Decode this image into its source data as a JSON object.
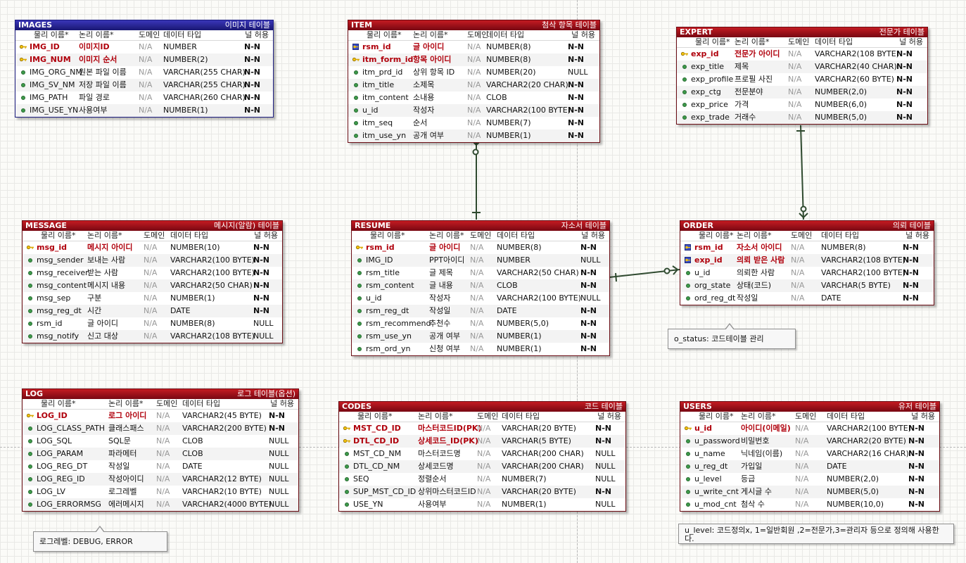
{
  "colors": {
    "entity_header": "#a3101a",
    "entity_header_images": "#26248f",
    "key_text": "#b0000c",
    "relationship_line": "#2f4a2f"
  },
  "column_headers": {
    "physical": "물리 이름*",
    "logical": "논리 이름*",
    "domain": "도메인",
    "datatype": "데이터 타입",
    "nullable": "널 허용"
  },
  "entities": {
    "images": {
      "name": "IMAGES",
      "label": "이미지 테이블",
      "rows": [
        {
          "key": "pk",
          "phys": "IMG_ID",
          "logi": "이미지ID",
          "dom": "N/A",
          "type": "NUMBER",
          "nul": "N-N"
        },
        {
          "key": "pk",
          "phys": "IMG_NUM",
          "logi": "이미지 순서",
          "dom": "N/A",
          "type": "NUMBER(2)",
          "nul": "N-N"
        },
        {
          "key": "",
          "phys": "IMG_ORG_NM",
          "logi": "원본 파일 이름",
          "dom": "N/A",
          "type": "VARCHAR(255 CHAR)",
          "nul": "N-N"
        },
        {
          "key": "",
          "phys": "IMG_SV_NM",
          "logi": "저장 파일 이름",
          "dom": "N/A",
          "type": "VARCHAR(255 CHAR)",
          "nul": "N-N"
        },
        {
          "key": "",
          "phys": "IMG_PATH",
          "logi": "파일 경로",
          "dom": "N/A",
          "type": "VARCHAR(260 CHAR)",
          "nul": "N-N"
        },
        {
          "key": "",
          "phys": "IMG_USE_YN",
          "logi": "사용여부",
          "dom": "N/A",
          "type": "NUMBER(1)",
          "nul": "N-N"
        }
      ]
    },
    "item": {
      "name": "ITEM",
      "label": "첨삭 항목 테이블",
      "rows": [
        {
          "key": "pkfk",
          "phys": "rsm_id",
          "logi": "글 아이디",
          "dom": "N/A",
          "type": "NUMBER(8)",
          "nul": "N-N"
        },
        {
          "key": "pk",
          "phys": "itm_form_id",
          "logi": "항목 아이디",
          "dom": "N/A",
          "type": "NUMBER(8)",
          "nul": "N-N"
        },
        {
          "key": "",
          "phys": "itm_prd_id",
          "logi": "상위 항목 ID",
          "dom": "N/A",
          "type": "NUMBER(20)",
          "nul": "NULL"
        },
        {
          "key": "",
          "phys": "itm_title",
          "logi": "소제목",
          "dom": "N/A",
          "type": "VARCHAR2(20 CHAR)",
          "nul": "N-N"
        },
        {
          "key": "",
          "phys": "itm_content",
          "logi": "소내용",
          "dom": "N/A",
          "type": "CLOB",
          "nul": "N-N"
        },
        {
          "key": "",
          "phys": "u_id",
          "logi": "작성자",
          "dom": "N/A",
          "type": "VARCHAR2(100 BYTE)",
          "nul": "N-N"
        },
        {
          "key": "",
          "phys": "itm_seq",
          "logi": "순서",
          "dom": "N/A",
          "type": "NUMBER(7)",
          "nul": "N-N"
        },
        {
          "key": "",
          "phys": "itm_use_yn",
          "logi": "공개 여부",
          "dom": "N/A",
          "type": "NUMBER(1)",
          "nul": "N-N"
        }
      ]
    },
    "expert": {
      "name": "EXPERT",
      "label": "전문가 테이블",
      "rows": [
        {
          "key": "pk",
          "phys": "exp_id",
          "logi": "전문가 아이디",
          "dom": "N/A",
          "type": "VARCHAR2(108 BYTE)",
          "nul": "N-N"
        },
        {
          "key": "",
          "phys": "exp_title",
          "logi": "제목",
          "dom": "N/A",
          "type": "VARCHAR2(40 CHAR)",
          "nul": "N-N"
        },
        {
          "key": "",
          "phys": "exp_profile",
          "logi": "프로필 사진",
          "dom": "N/A",
          "type": "VARCHAR2(60 BYTE)",
          "nul": "N-N"
        },
        {
          "key": "",
          "phys": "exp_ctg",
          "logi": "전문분야",
          "dom": "N/A",
          "type": "NUMBER(2,0)",
          "nul": "N-N"
        },
        {
          "key": "",
          "phys": "exp_price",
          "logi": "가격",
          "dom": "N/A",
          "type": "NUMBER(6,0)",
          "nul": "N-N"
        },
        {
          "key": "",
          "phys": "exp_trade",
          "logi": "거래수",
          "dom": "N/A",
          "type": "NUMBER(5,0)",
          "nul": "N-N"
        }
      ]
    },
    "message": {
      "name": "MESSAGE",
      "label": "메시지(알람) 테이블",
      "rows": [
        {
          "key": "pk",
          "phys": "msg_id",
          "logi": "메시지 아이디",
          "dom": "N/A",
          "type": "NUMBER(10)",
          "nul": "N-N"
        },
        {
          "key": "",
          "phys": "msg_sender",
          "logi": "보내는 사람",
          "dom": "N/A",
          "type": "VARCHAR2(100 BYTE)",
          "nul": "N-N"
        },
        {
          "key": "",
          "phys": "msg_receiver",
          "logi": "받는 사람",
          "dom": "N/A",
          "type": "VARCHAR2(100 BYTE)",
          "nul": "N-N"
        },
        {
          "key": "",
          "phys": "msg_content",
          "logi": "메시지 내용",
          "dom": "N/A",
          "type": "VARCHAR2(50 CHAR)",
          "nul": "N-N"
        },
        {
          "key": "",
          "phys": "msg_sep",
          "logi": "구분",
          "dom": "N/A",
          "type": "NUMBER(1)",
          "nul": "N-N"
        },
        {
          "key": "",
          "phys": "msg_reg_dt",
          "logi": "시간",
          "dom": "N/A",
          "type": "DATE",
          "nul": "N-N"
        },
        {
          "key": "",
          "phys": "rsm_id",
          "logi": "글 아이디",
          "dom": "N/A",
          "type": "NUMBER(8)",
          "nul": "NULL"
        },
        {
          "key": "",
          "phys": "msg_notify",
          "logi": "신고 대상",
          "dom": "N/A",
          "type": "VARCHAR2(108 BYTE)",
          "nul": "NULL"
        }
      ]
    },
    "resume": {
      "name": "RESUME",
      "label": "자소서 테이블",
      "rows": [
        {
          "key": "pk",
          "phys": "rsm_id",
          "logi": "글 아이디",
          "dom": "N/A",
          "type": "NUMBER(8)",
          "nul": "N-N"
        },
        {
          "key": "",
          "phys": "IMG_ID",
          "logi": "PPT아이디",
          "dom": "N/A",
          "type": "NUMBER",
          "nul": "NULL"
        },
        {
          "key": "",
          "phys": "rsm_title",
          "logi": "글 제목",
          "dom": "N/A",
          "type": "VARCHAR2(50 CHAR)",
          "nul": "N-N"
        },
        {
          "key": "",
          "phys": "rsm_content",
          "logi": "글 내용",
          "dom": "N/A",
          "type": "CLOB",
          "nul": "N-N"
        },
        {
          "key": "",
          "phys": "u_id",
          "logi": "작성자",
          "dom": "N/A",
          "type": "VARCHAR2(100 BYTE)",
          "nul": "NULL"
        },
        {
          "key": "",
          "phys": "rsm_reg_dt",
          "logi": "작성일",
          "dom": "N/A",
          "type": "DATE",
          "nul": "N-N"
        },
        {
          "key": "",
          "phys": "rsm_recommend",
          "logi": "추천수",
          "dom": "N/A",
          "type": "NUMBER(5,0)",
          "nul": "N-N"
        },
        {
          "key": "",
          "phys": "rsm_use_yn",
          "logi": "공개 여부",
          "dom": "N/A",
          "type": "NUMBER(1)",
          "nul": "N-N"
        },
        {
          "key": "",
          "phys": "rsm_ord_yn",
          "logi": "신청 여부",
          "dom": "N/A",
          "type": "NUMBER(1)",
          "nul": "N-N"
        }
      ]
    },
    "order": {
      "name": "ORDER",
      "label": "의뢰 테이블",
      "rows": [
        {
          "key": "pkfk",
          "phys": "rsm_id",
          "logi": "자소서 아이디",
          "dom": "N/A",
          "type": "NUMBER(8)",
          "nul": "N-N"
        },
        {
          "key": "pkfk",
          "phys": "exp_id",
          "logi": "의뢰 받은 사람",
          "dom": "N/A",
          "type": "VARCHAR2(108 BYTE)",
          "nul": "N-N"
        },
        {
          "key": "",
          "phys": "u_id",
          "logi": "의뢰한 사람",
          "dom": "N/A",
          "type": "VARCHAR2(100 BYTE)",
          "nul": "N-N"
        },
        {
          "key": "",
          "phys": "org_state",
          "logi": "상태(코드)",
          "dom": "N/A",
          "type": "VARCHAR(5 BYTE)",
          "nul": "N-N"
        },
        {
          "key": "",
          "phys": "ord_reg_dt",
          "logi": "작성일",
          "dom": "N/A",
          "type": "DATE",
          "nul": "N-N"
        }
      ]
    },
    "log": {
      "name": "LOG",
      "label": "로그 테이블(옵션)",
      "rows": [
        {
          "key": "pk",
          "phys": "LOG_ID",
          "logi": "로그 아이디",
          "dom": "N/A",
          "type": "VARCHAR2(45 BYTE)",
          "nul": "N-N"
        },
        {
          "key": "",
          "phys": "LOG_CLASS_PATH",
          "logi": "클래스패스",
          "dom": "N/A",
          "type": "VARCHAR2(200 BYTE)",
          "nul": "N-N"
        },
        {
          "key": "",
          "phys": "LOG_SQL",
          "logi": "SQL문",
          "dom": "N/A",
          "type": "CLOB",
          "nul": "NULL"
        },
        {
          "key": "",
          "phys": "LOG_PARAM",
          "logi": "파라메터",
          "dom": "N/A",
          "type": "CLOB",
          "nul": "NULL"
        },
        {
          "key": "",
          "phys": "LOG_REG_DT",
          "logi": "작성일",
          "dom": "N/A",
          "type": "DATE",
          "nul": "NULL"
        },
        {
          "key": "",
          "phys": "LOG_REG_ID",
          "logi": "작성아이디",
          "dom": "N/A",
          "type": "VARCHAR2(12 BYTE)",
          "nul": "NULL"
        },
        {
          "key": "",
          "phys": "LOG_LV",
          "logi": "로그레벨",
          "dom": "N/A",
          "type": "VARCHAR2(10 BYTE)",
          "nul": "NULL"
        },
        {
          "key": "",
          "phys": "LOG_ERRORMSG",
          "logi": "에러메시지",
          "dom": "N/A",
          "type": "VARCHAR2(4000 BYTE)",
          "nul": "NULL"
        }
      ]
    },
    "codes": {
      "name": "CODES",
      "label": "코드 테이블",
      "rows": [
        {
          "key": "pk",
          "phys": "MST_CD_ID",
          "logi": "마스터코드ID(PK)",
          "dom": "N/A",
          "type": "VARCHAR(20 BYTE)",
          "nul": "N-N"
        },
        {
          "key": "pk",
          "phys": "DTL_CD_ID",
          "logi": "상세코드_ID(PK)",
          "dom": "N/A",
          "type": "VARCHAR(5 BYTE)",
          "nul": "N-N"
        },
        {
          "key": "",
          "phys": "MST_CD_NM",
          "logi": "마스터코드명",
          "dom": "N/A",
          "type": "VARCHAR(200 CHAR)",
          "nul": "NULL"
        },
        {
          "key": "",
          "phys": "DTL_CD_NM",
          "logi": "상세코드명",
          "dom": "N/A",
          "type": "VARCHAR(200 CHAR)",
          "nul": "NULL"
        },
        {
          "key": "",
          "phys": "SEQ",
          "logi": "정렬순서",
          "dom": "N/A",
          "type": "NUMBER(7)",
          "nul": "NULL"
        },
        {
          "key": "",
          "phys": "SUP_MST_CD_ID",
          "logi": "상위마스터코드ID",
          "dom": "N/A",
          "type": "VARCHAR(20 BYTE)",
          "nul": "N-N"
        },
        {
          "key": "",
          "phys": "USE_YN",
          "logi": "사용여부",
          "dom": "N/A",
          "type": "NUMBER(1)",
          "nul": "NULL"
        }
      ]
    },
    "users": {
      "name": "USERS",
      "label": "유저 테이블",
      "rows": [
        {
          "key": "pk",
          "phys": "u_id",
          "logi": "아이디(이메일)",
          "dom": "N/A",
          "type": "VARCHAR2(100 BYTE)",
          "nul": "N-N"
        },
        {
          "key": "",
          "phys": "u_password",
          "logi": "비밀번호",
          "dom": "N/A",
          "type": "VARCHAR2(20 BYTE)",
          "nul": "N-N"
        },
        {
          "key": "",
          "phys": "u_name",
          "logi": "닉네임(이름)",
          "dom": "N/A",
          "type": "VARCHAR2(16 CHAR)",
          "nul": "N-N"
        },
        {
          "key": "",
          "phys": "u_reg_dt",
          "logi": "가입일",
          "dom": "N/A",
          "type": "DATE",
          "nul": "N-N"
        },
        {
          "key": "",
          "phys": "u_level",
          "logi": "등급",
          "dom": "N/A",
          "type": "NUMBER(2,0)",
          "nul": "N-N"
        },
        {
          "key": "",
          "phys": "u_write_cnt",
          "logi": "게시글 수",
          "dom": "N/A",
          "type": "NUMBER(5,0)",
          "nul": "N-N"
        },
        {
          "key": "",
          "phys": "u_mod_cnt",
          "logi": "첨삭 수",
          "dom": "N/A",
          "type": "NUMBER(10,0)",
          "nul": "N-N"
        }
      ]
    }
  },
  "notes": {
    "order_status": "o_status: 코드테이블 관리",
    "log_level": "로그레벨: DEBUG, ERROR",
    "user_level": "u_level: 코드정의x, 1=일반회원 ,2=전문가,3=관리자 등으로 정의해 사용한다."
  }
}
